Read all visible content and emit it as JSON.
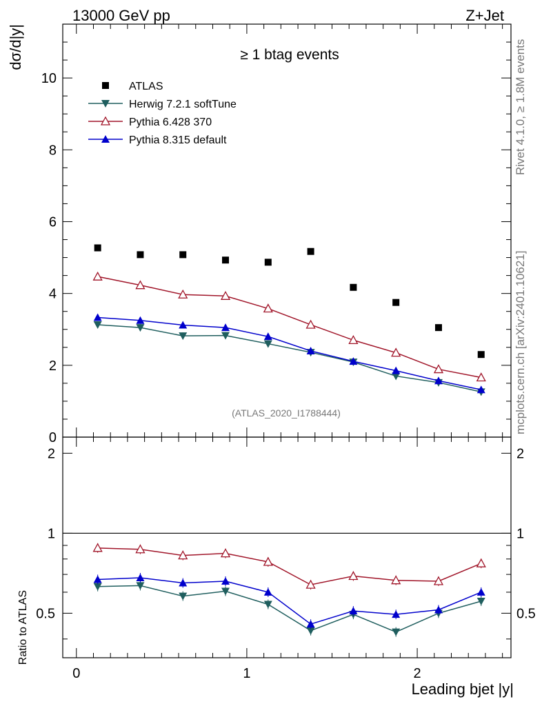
{
  "header": {
    "left_title": "13000 GeV pp",
    "right_title": "Z+Jet"
  },
  "side_labels": {
    "rivet": "Rivet 4.1.0, ≥ 1.8M events",
    "mcplots": "mcplots.cern.ch [arXiv:2401.10621]"
  },
  "colors": {
    "atlas": "#000000",
    "herwig": "#1f5e5e",
    "pythia6": "#a01428",
    "pythia8": "#0000cc"
  },
  "chart_data": {
    "type": "scatter",
    "title": "≥ 1 btag events",
    "analysis_label": "(ATLAS_2020_I1788444)",
    "xlabel": "Leading bjet |y|",
    "ylabel": "dσ/d|y|",
    "ratio_ylabel": "Ratio to ATLAS",
    "xlim": [
      -0.08,
      2.55
    ],
    "ylim": [
      0,
      11.5
    ],
    "ratio_ylim": [
      0.34,
      2.3
    ],
    "x_ticks": [
      "0",
      "1",
      "2"
    ],
    "y_ticks": [
      "0",
      "2",
      "4",
      "6",
      "8",
      "10"
    ],
    "ratio_ticks": [
      "0.5",
      "1",
      "2"
    ],
    "x": [
      0.125,
      0.375,
      0.625,
      0.875,
      1.125,
      1.375,
      1.625,
      1.875,
      2.125,
      2.375
    ],
    "series": [
      {
        "name": "ATLAS",
        "marker": "square",
        "color": "#000000",
        "values": [
          5.27,
          5.08,
          5.08,
          4.93,
          4.87,
          5.17,
          4.17,
          3.75,
          3.05,
          2.3
        ]
      },
      {
        "name": "Herwig 7.2.1 softTune",
        "marker": "triangle-down",
        "color": "#1f5e5e",
        "values": [
          3.13,
          3.05,
          2.82,
          2.83,
          2.6,
          2.36,
          2.09,
          1.7,
          1.52,
          1.26
        ],
        "ratio": [
          0.63,
          0.635,
          0.58,
          0.605,
          0.54,
          0.43,
          0.495,
          0.425,
          0.5,
          0.555
        ]
      },
      {
        "name": "Pythia 6.428 370",
        "marker": "triangle-up-open",
        "color": "#a01428",
        "values": [
          4.47,
          4.23,
          3.97,
          3.93,
          3.58,
          3.13,
          2.7,
          2.35,
          1.89,
          1.66
        ],
        "ratio": [
          0.88,
          0.87,
          0.825,
          0.84,
          0.78,
          0.64,
          0.69,
          0.665,
          0.66,
          0.77
        ]
      },
      {
        "name": "Pythia 8.315 default",
        "marker": "triangle-up",
        "color": "#0000cc",
        "values": [
          3.33,
          3.25,
          3.12,
          3.05,
          2.8,
          2.4,
          2.11,
          1.85,
          1.57,
          1.32
        ],
        "ratio": [
          0.67,
          0.68,
          0.65,
          0.66,
          0.6,
          0.455,
          0.51,
          0.495,
          0.515,
          0.6
        ]
      }
    ],
    "legend_position": "top-left"
  }
}
